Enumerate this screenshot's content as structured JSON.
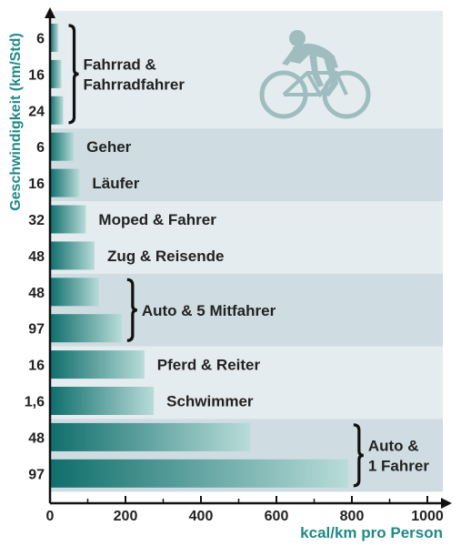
{
  "chart_data": {
    "type": "bar",
    "orientation": "horizontal",
    "xlabel": "kcal/km pro Person",
    "ylabel": "Geschwindigkeit (km/Std)",
    "xlim": [
      0,
      1000
    ],
    "xticks": [
      "0",
      "200",
      "400",
      "600",
      "800",
      "1000"
    ],
    "bars": [
      {
        "speed": "6",
        "value": 22
      },
      {
        "speed": "16",
        "value": 30
      },
      {
        "speed": "24",
        "value": 35
      },
      {
        "speed": "6",
        "value": 63
      },
      {
        "speed": "16",
        "value": 78
      },
      {
        "speed": "32",
        "value": 95
      },
      {
        "speed": "48",
        "value": 118
      },
      {
        "speed": "48",
        "value": 130
      },
      {
        "speed": "97",
        "value": 190
      },
      {
        "speed": "16",
        "value": 250
      },
      {
        "speed": "1,6",
        "value": 275
      },
      {
        "speed": "48",
        "value": 530
      },
      {
        "speed": "97",
        "value": 790
      }
    ],
    "groups": [
      {
        "label_lines": [
          "Fahrrad &",
          "Fahrradfahrer"
        ],
        "bars": [
          0,
          1,
          2
        ],
        "brace": true,
        "band": "light"
      },
      {
        "label_lines": [
          "Geher"
        ],
        "bars": [
          3
        ],
        "brace": false,
        "band": "dark"
      },
      {
        "label_lines": [
          "Läufer"
        ],
        "bars": [
          4
        ],
        "brace": false,
        "band": "dark"
      },
      {
        "label_lines": [
          "Moped & Fahrer"
        ],
        "bars": [
          5
        ],
        "brace": false,
        "band": "light"
      },
      {
        "label_lines": [
          "Zug & Reisende"
        ],
        "bars": [
          6
        ],
        "brace": false,
        "band": "light"
      },
      {
        "label_lines": [
          "Auto & 5 Mitfahrer"
        ],
        "bars": [
          7,
          8
        ],
        "brace": true,
        "band": "dark"
      },
      {
        "label_lines": [
          "Pferd & Reiter"
        ],
        "bars": [
          9
        ],
        "brace": false,
        "band": "light"
      },
      {
        "label_lines": [
          "Schwimmer"
        ],
        "bars": [
          10
        ],
        "brace": false,
        "band": "light"
      },
      {
        "label_lines": [
          "Auto &",
          "1 Fahrer"
        ],
        "bars": [
          11,
          12
        ],
        "brace": true,
        "band": "dark"
      }
    ],
    "grid": false,
    "icon": "cyclist-icon",
    "colors": {
      "bar_dark": "#0f6e6b",
      "bar_light": "#b8dcd9",
      "band_light": "#e4ecef",
      "band_dark": "#cfdce1",
      "axis_title": "#1e8a86",
      "cyclist": "#9fbdbf"
    }
  }
}
